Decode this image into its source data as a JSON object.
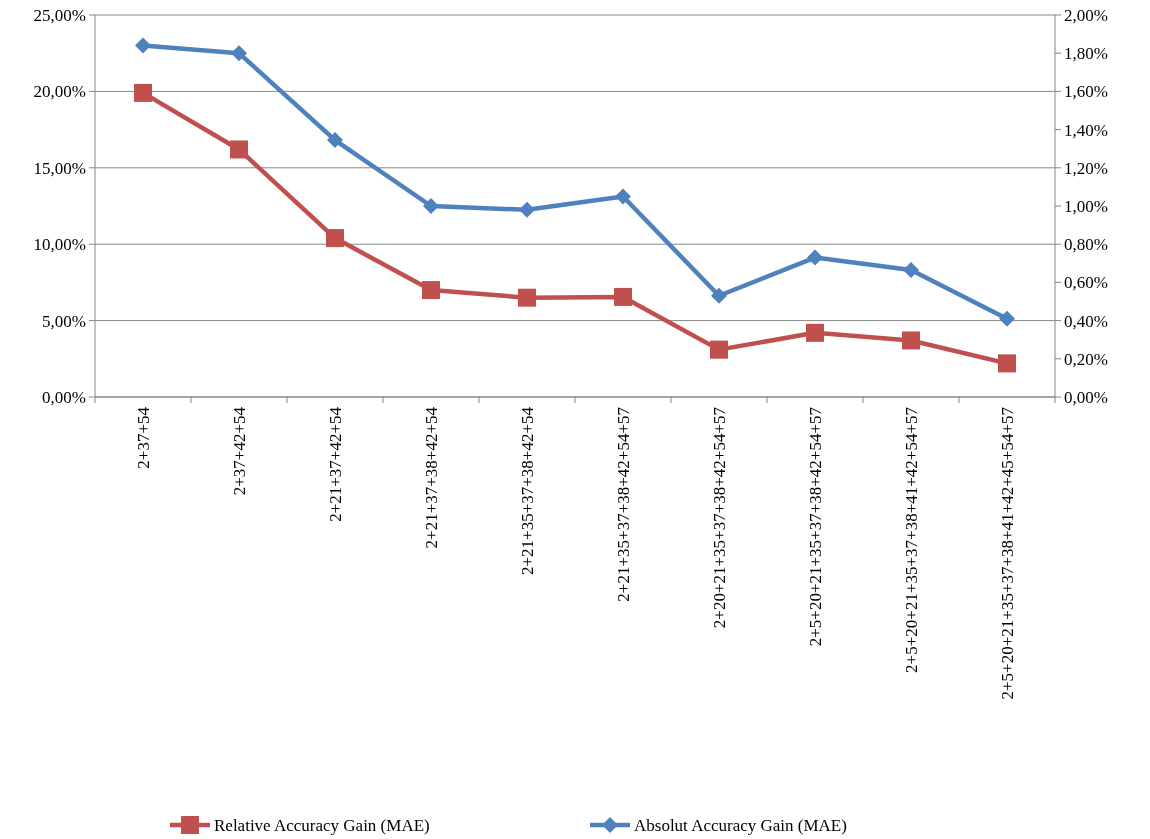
{
  "chart_data": {
    "type": "line",
    "categories": [
      "2+37+54",
      "2+37+42+54",
      "2+21+37+42+54",
      "2+21+37+38+42+54",
      "2+21+35+37+38+42+54",
      "2+21+35+37+38+42+54+57",
      "2+20+21+35+37+38+42+54+57",
      "2+5+20+21+35+37+38+42+54+57",
      "2+5+20+21+35+37+38+41+42+54+57",
      "2+5+20+21+35+37+38+41+42+45+54+57"
    ],
    "series": [
      {
        "name": "Relative Accuracy Gain (MAE)",
        "color": "#c0504d",
        "marker": "square",
        "values": [
          19.9,
          16.2,
          10.4,
          7.0,
          6.5,
          6.55,
          3.1,
          4.2,
          3.7,
          2.2
        ]
      },
      {
        "name": "Absolut Accuracy Gain (MAE)",
        "color": "#4f81bd",
        "marker": "diamond",
        "axis": "y2",
        "values": [
          1.84,
          1.8,
          1.345,
          1.0,
          0.98,
          1.05,
          0.53,
          0.73,
          0.665,
          0.41
        ]
      }
    ],
    "ylim": [
      0,
      25
    ],
    "yticks": [
      {
        "value": 0,
        "label": "0,00%"
      },
      {
        "value": 5,
        "label": "5,00%"
      },
      {
        "value": 10,
        "label": "10,00%"
      },
      {
        "value": 15,
        "label": "15,00%"
      },
      {
        "value": 20,
        "label": "20,00%"
      },
      {
        "value": 25,
        "label": "25,00%"
      }
    ],
    "y2lim": [
      0,
      2
    ],
    "y2ticks": [
      {
        "value": 0,
        "label": "0,00%"
      },
      {
        "value": 0.2,
        "label": "0,20%"
      },
      {
        "value": 0.4,
        "label": "0,40%"
      },
      {
        "value": 0.6,
        "label": "0,60%"
      },
      {
        "value": 0.8,
        "label": "0,80%"
      },
      {
        "value": 1,
        "label": "1,00%"
      },
      {
        "value": 1.2,
        "label": "1,20%"
      },
      {
        "value": 1.4,
        "label": "1,40%"
      },
      {
        "value": 1.6,
        "label": "1,60%"
      },
      {
        "value": 1.8,
        "label": "1,80%"
      },
      {
        "value": 2,
        "label": "2,00%"
      }
    ],
    "grid": "y",
    "legend": "bottom",
    "line_style": "solid"
  }
}
